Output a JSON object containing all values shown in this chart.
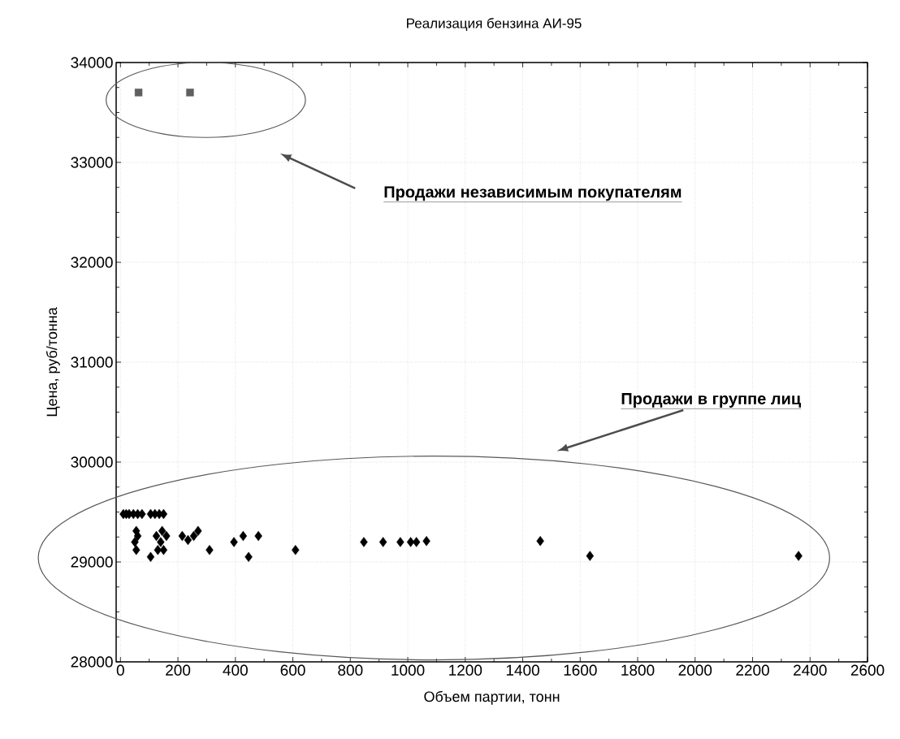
{
  "chart_data": {
    "type": "scatter",
    "title": "Реализация бензина  АИ-95",
    "xlabel": "Объем партии, тонн",
    "ylabel": "Цена, руб/тонна",
    "xlim": [
      -15,
      2600
    ],
    "ylim": [
      28000,
      34000
    ],
    "xticks": [
      0,
      200,
      400,
      600,
      800,
      1000,
      1200,
      1400,
      1600,
      1800,
      2000,
      2200,
      2400,
      2600
    ],
    "yticks": [
      28000,
      29000,
      30000,
      31000,
      32000,
      33000,
      34000
    ],
    "grid": true,
    "annotations": [
      "Продажи независимым покупателям",
      "Продажи в  группе лиц"
    ],
    "series": [
      {
        "color": "#5f5f5f",
        "marker": "square",
        "x": [
          63,
          242
        ],
        "values": [
          33700,
          33700
        ]
      },
      {
        "color": "#000000",
        "marker": "diamond",
        "x": [
          10,
          20,
          30,
          45,
          60,
          75,
          105,
          120,
          135,
          150,
          55,
          60,
          50,
          55,
          105,
          125,
          145,
          160,
          140,
          130,
          150,
          215,
          235,
          255,
          270,
          310,
          395,
          427,
          480,
          446,
          609,
          847,
          914,
          974,
          1010,
          1030,
          1065,
          1461,
          1634,
          2360
        ],
        "values": [
          29480,
          29480,
          29480,
          29480,
          29480,
          29480,
          29480,
          29480,
          29480,
          29480,
          29310,
          29260,
          29200,
          29120,
          29050,
          29260,
          29310,
          29260,
          29200,
          29120,
          29120,
          29260,
          29220,
          29260,
          29310,
          29120,
          29200,
          29260,
          29260,
          29050,
          29120,
          29200,
          29200,
          29200,
          29200,
          29200,
          29210,
          29210,
          29060,
          29060
        ]
      }
    ]
  }
}
